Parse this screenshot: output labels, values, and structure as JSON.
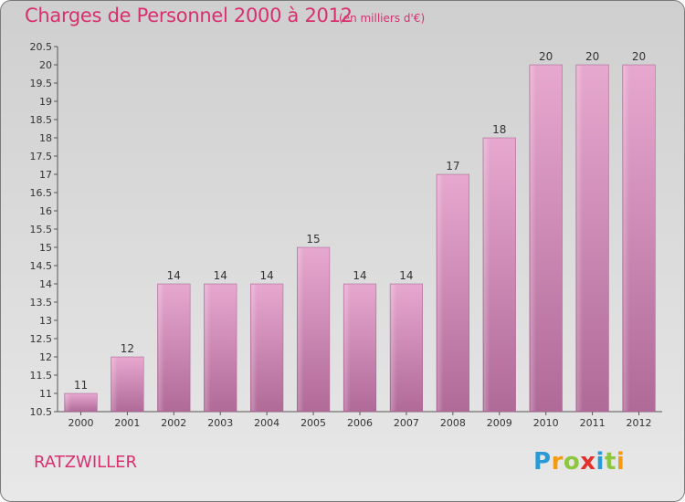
{
  "chart_data": {
    "type": "bar",
    "title": "Charges de Personnel 2000 à 2012",
    "subtitle": "(en milliers d'€)",
    "categories": [
      "2000",
      "2001",
      "2002",
      "2003",
      "2004",
      "2005",
      "2006",
      "2007",
      "2008",
      "2009",
      "2010",
      "2011",
      "2012"
    ],
    "values": [
      11,
      12,
      14,
      14,
      14,
      15,
      14,
      14,
      17,
      18,
      20,
      20,
      20
    ],
    "ylim": [
      10.5,
      20.5
    ],
    "yticks": [
      "10.5",
      "11",
      "11.5",
      "12",
      "12.5",
      "13",
      "13.5",
      "14",
      "14.5",
      "15",
      "15.5",
      "16",
      "16.5",
      "17",
      "17.5",
      "18",
      "18.5",
      "19",
      "19.5",
      "20",
      "20.5"
    ],
    "grid": false,
    "bar_color": "#d98bbb"
  },
  "commune": "RATZWILLER",
  "logo": {
    "letters": [
      "P",
      "r",
      "o",
      "x",
      "i",
      "t",
      "i"
    ],
    "colors": [
      "#2a9ad6",
      "#f39c12",
      "#8dc63f",
      "#e2312d",
      "#2a9ad6",
      "#8dc63f",
      "#f39c12"
    ]
  }
}
